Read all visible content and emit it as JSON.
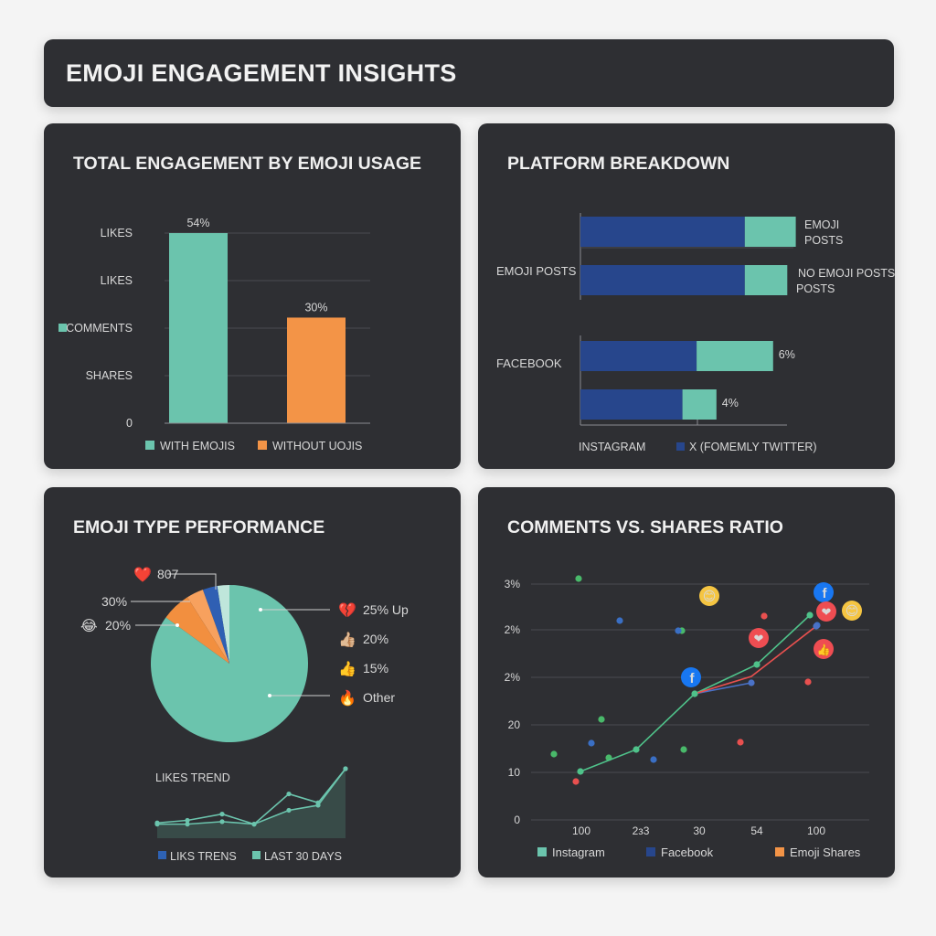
{
  "header": {
    "title": "EMOJI ENGAGEMENT INSIGHTS"
  },
  "colors": {
    "teal": "#6bc4ad",
    "orange": "#f39447",
    "blue": "#27468c",
    "red": "#e8504f",
    "green_point": "#49b96a",
    "panel": "#2e2f33"
  },
  "panels": {
    "engagement": {
      "title": "TOTAL ENGAGEMENT BY EMOJI USAGE",
      "chart_data": {
        "type": "bar",
        "y_tick_labels": [
          "LIKES",
          "LIKES",
          "COMMENTS",
          "SHARES",
          "0"
        ],
        "categories": [
          "WITH EMOJIS",
          "WITHOUT UOJIS"
        ],
        "values": [
          54,
          30
        ],
        "value_labels": [
          "54%",
          "30%"
        ],
        "ylim": [
          0,
          60
        ],
        "legend": [
          "WITH EMOJIS",
          "WITHOUT UOJIS"
        ],
        "legend_position": "bottom",
        "grid": true
      }
    },
    "platform": {
      "title": "PLATFORM BREAKDOWN",
      "chart_data": {
        "type": "bar",
        "orientation": "horizontal",
        "stacked": true,
        "groups": [
          {
            "label": "EMOJI POSTS",
            "rows": [
              {
                "segments": [
                  58,
                  18
                ],
                "label_lines": [
                  "EMOJI",
                  "POSTS"
                ]
              },
              {
                "segments": [
                  58,
                  15
                ],
                "label_lines": [
                  "NO EMOJI POSTS",
                  "POSTS"
                ]
              }
            ]
          },
          {
            "label": "FACEBOOK",
            "rows": [
              {
                "segments": [
                  41,
                  27
                ],
                "label_lines": [
                  "6%"
                ]
              },
              {
                "segments": [
                  36,
                  12
                ],
                "label_lines": [
                  "4%"
                ]
              }
            ]
          }
        ],
        "legend": [
          "INSTAGRAM",
          "X (FOMEMLY TWITTER)"
        ],
        "legend_position": "bottom"
      }
    },
    "emoji_type": {
      "title": "EMOJI TYPE PERFORMANCE",
      "chart_data": {
        "type": "pie",
        "slices": [
          {
            "label": "807",
            "emoji": "❤️",
            "value": 3
          },
          {
            "label": "30%",
            "emoji": "",
            "value": 3
          },
          {
            "label": "20%",
            "emoji": "😂",
            "value": 7
          },
          {
            "label": "25% Up",
            "emoji": "💔",
            "value": 83
          },
          {
            "label": "20%",
            "emoji": "👍🏼",
            "value": 1.5
          },
          {
            "label": "15%",
            "emoji": "👍",
            "value": 1.5
          },
          {
            "label": "Other",
            "emoji": "🔥",
            "value": 1
          }
        ]
      },
      "trend": {
        "title": "LIKES TREND",
        "chart_data": {
          "type": "line",
          "series": [
            {
              "name": "LIKS TRENS",
              "values": [
                2,
                4,
                9,
                1,
                25,
                18,
                45
              ]
            },
            {
              "name": "LAST 30 DAYS",
              "values": [
                1,
                1,
                3,
                1,
                12,
                16,
                45
              ]
            }
          ]
        }
      }
    },
    "ratio": {
      "title": "COMMENTS VS. SHARES RATIO",
      "chart_data": {
        "type": "scatter",
        "y_tick_labels": [
          "3%",
          "2%",
          "2%",
          "20",
          "10",
          "0"
        ],
        "x_tick_labels": [
          "100",
          "2з3",
          "30",
          "54",
          "100"
        ],
        "points_green": [
          [
            0.1,
            2.52
          ],
          [
            0.16,
            2.95
          ],
          [
            0.2,
            1.0
          ],
          [
            0.26,
            2.65
          ],
          [
            0.33,
            2.38
          ],
          [
            0.5,
            2.98
          ],
          [
            0.86,
            2.1
          ],
          [
            0.97,
            2.27
          ]
        ],
        "points_blue": [
          [
            0.25,
            2.0
          ],
          [
            0.4,
            4.1
          ],
          [
            0.46,
            2.19
          ],
          [
            0.53,
            3.3
          ],
          [
            0.76,
            2.55
          ],
          [
            0.97,
            3.4
          ]
        ],
        "points_red": [
          [
            0.14,
            1.4
          ],
          [
            0.73,
            1.5
          ],
          [
            0.83,
            3.4
          ],
          [
            0.95,
            2.43
          ]
        ],
        "series": [
          {
            "name": "Instagram",
            "points": [
              [
                0.14,
                1.08
              ],
              [
                0.3,
                1.39
              ],
              [
                0.52,
                2.66
              ],
              [
                0.74,
                2.98
              ],
              [
                0.94,
                4.31
              ]
            ]
          },
          {
            "name": "Facebook",
            "points": [
              [
                0.52,
                2.66
              ],
              [
                0.75,
                2.86
              ]
            ]
          },
          {
            "name": "Emoji Shares",
            "points": [
              [
                0.52,
                2.66
              ],
              [
                0.77,
                3.06
              ],
              [
                0.96,
                4.18
              ]
            ]
          }
        ],
        "reaction_icons": [
          "😊",
          "f",
          "❤",
          "😊",
          "❤",
          "👍",
          "f"
        ],
        "legend": [
          "Instagram",
          "Facebook",
          "Emoji Shares"
        ],
        "legend_position": "bottom"
      }
    }
  }
}
